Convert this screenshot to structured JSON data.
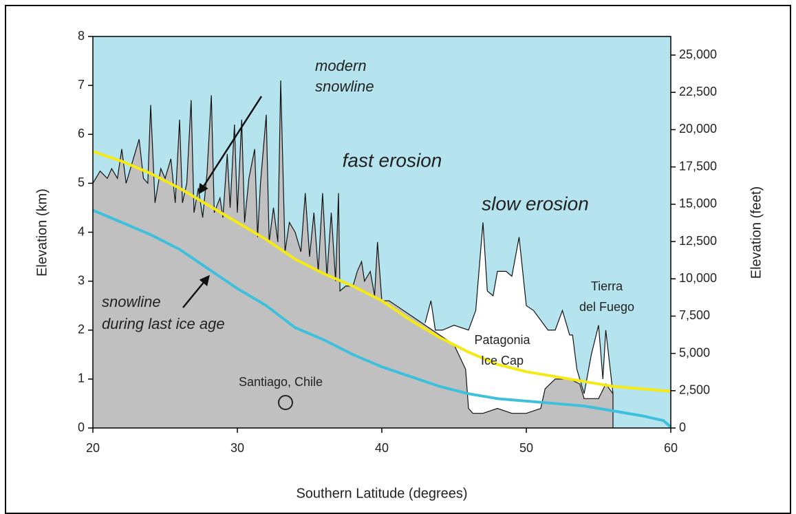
{
  "chart_data": {
    "type": "area",
    "xlabel": "Southern Latitude (degrees)",
    "ylabel": "Elevation (km)",
    "y2label": "Elevation (feet)",
    "xlim": [
      20,
      60
    ],
    "ylim": [
      0,
      8
    ],
    "y2lim": [
      0,
      26247
    ],
    "xticks": [
      20,
      30,
      40,
      50,
      60
    ],
    "yticks": [
      0,
      1,
      2,
      3,
      4,
      5,
      6,
      7,
      8
    ],
    "y2ticks": [
      0,
      {
        "value": 2500,
        "label": "2,500"
      },
      {
        "value": 5000,
        "label": "5,000"
      },
      {
        "value": 7500,
        "label": "7,500"
      },
      {
        "value": 10000,
        "label": "10,000"
      },
      {
        "value": 12500,
        "label": "12,500"
      },
      {
        "value": 15000,
        "label": "15,000"
      },
      {
        "value": 17500,
        "label": "17,500"
      },
      {
        "value": 20000,
        "label": "20,000"
      },
      {
        "value": 22500,
        "label": "22,500"
      },
      {
        "value": 25000,
        "label": "25,000"
      }
    ],
    "background": "#b5e3ee",
    "series": [
      {
        "type": "area",
        "color": "#ffffff",
        "x": [
          43.0,
          43.4,
          43.7,
          44.2,
          45,
          46,
          46.5,
          47,
          47.3,
          47.7,
          48,
          48.6,
          49,
          49.5,
          50,
          50.5,
          51,
          51.5,
          52,
          52.5,
          53,
          53.2,
          53.5,
          54,
          54.5,
          55,
          55.3,
          55.5,
          56
        ],
        "values": [
          2.15,
          2.6,
          2.0,
          2.0,
          2.1,
          2.0,
          2.4,
          4.2,
          2.8,
          2.7,
          3.2,
          3.2,
          3.1,
          3.9,
          2.5,
          2.4,
          2.2,
          2.0,
          2.0,
          2.4,
          1.9,
          1.9,
          1.2,
          0.7,
          1.5,
          2.1,
          1.0,
          2.0,
          0.7
        ]
      },
      {
        "type": "area",
        "color": "#c0c0c0",
        "x": [
          20,
          20.5,
          21,
          21.3,
          21.7,
          22,
          22.3,
          22.7,
          23.2,
          23.5,
          23.8,
          24,
          24.3,
          24.7,
          25,
          25.4,
          25.7,
          26,
          26.2,
          26.5,
          26.8,
          27,
          27.3,
          27.6,
          27.9,
          28.2,
          28.4,
          28.8,
          29,
          29.3,
          29.5,
          29.8,
          30,
          30.3,
          30.5,
          30.8,
          31.2,
          31.4,
          31.6,
          32,
          32.2,
          32.5,
          32.8,
          33,
          33.3,
          33.6,
          34,
          34.4,
          34.7,
          35,
          35.3,
          35.6,
          35.9,
          36.2,
          36.5,
          36.8,
          37,
          37.1,
          37.5,
          38,
          38.3,
          38.6,
          38.8,
          39.2,
          39.5,
          39.7,
          40,
          40.5,
          41,
          42,
          43,
          44,
          45,
          45.8,
          46,
          46.3,
          47,
          48,
          49,
          50,
          51,
          51.3,
          52,
          53,
          53.7,
          54,
          55,
          55.5,
          56,
          56
        ],
        "values": [
          5.0,
          5.25,
          5.1,
          5.3,
          5.1,
          5.7,
          5.0,
          5.4,
          5.9,
          5.1,
          5.0,
          6.6,
          4.6,
          5.3,
          5.1,
          5.5,
          4.6,
          6.3,
          4.6,
          5.0,
          6.7,
          4.4,
          4.9,
          4.3,
          5.2,
          6.8,
          4.4,
          4.7,
          4.3,
          5.6,
          4.5,
          6.2,
          4.4,
          6.3,
          4.2,
          5.1,
          5.7,
          3.9,
          5.0,
          6.4,
          3.8,
          4.5,
          3.8,
          7.1,
          3.6,
          4.2,
          4.0,
          3.6,
          4.8,
          3.5,
          4.4,
          3.2,
          4.8,
          3.1,
          4.4,
          3.0,
          4.8,
          2.8,
          2.9,
          2.9,
          3.2,
          3.4,
          3.0,
          3.2,
          2.7,
          3.8,
          2.6,
          2.6,
          2.5,
          2.3,
          2.1,
          1.9,
          1.7,
          1.2,
          0.4,
          0.3,
          0.3,
          0.4,
          0.3,
          0.3,
          0.4,
          0.8,
          1.0,
          1.0,
          0.9,
          0.6,
          0.6,
          0.9,
          0.7,
          0
        ]
      },
      {
        "type": "line",
        "color": "#f5ea14",
        "x": [
          20,
          22,
          24,
          26,
          28,
          30,
          32,
          34,
          36,
          38,
          40,
          42,
          44,
          46,
          48,
          50,
          52,
          54,
          56,
          58,
          60
        ],
        "values": [
          5.65,
          5.45,
          5.2,
          4.9,
          4.55,
          4.2,
          3.85,
          3.45,
          3.15,
          2.9,
          2.6,
          2.2,
          1.85,
          1.55,
          1.3,
          1.15,
          1.05,
          0.95,
          0.85,
          0.8,
          0.75
        ]
      },
      {
        "type": "line",
        "color": "#3ec0dc",
        "x": [
          20,
          22,
          24,
          26,
          28,
          30,
          32,
          34,
          36,
          38,
          40,
          42,
          44,
          46,
          48,
          50,
          52,
          54,
          56,
          58,
          59.5,
          60
        ],
        "values": [
          4.45,
          4.2,
          3.95,
          3.65,
          3.25,
          2.85,
          2.5,
          2.05,
          1.8,
          1.5,
          1.25,
          1.05,
          0.85,
          0.7,
          0.6,
          0.55,
          0.5,
          0.45,
          0.35,
          0.25,
          0.15,
          0.02
        ]
      }
    ],
    "annotations": [
      "modern",
      "snowline",
      "fast erosion",
      "slow erosion",
      "snowline",
      "during last ice age",
      "Tierra",
      "del Fuego",
      "Patagonia",
      "Ice Cap",
      "Santiago, Chile"
    ]
  }
}
